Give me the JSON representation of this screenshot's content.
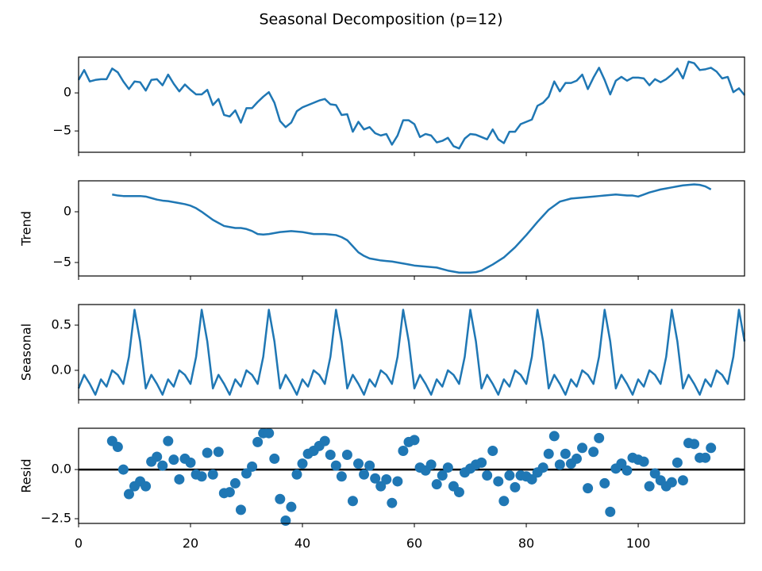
{
  "chart_data": [
    {
      "type": "line",
      "title": "Seasonal Decomposition (p=12)",
      "color": "#1f77b4",
      "xtick_labels": false,
      "xlim": [
        0,
        119
      ],
      "ylim": [
        -7.8,
        4.7
      ],
      "xticks": [
        0,
        20,
        40,
        60,
        80,
        100
      ],
      "yticks": [
        {
          "value": -5,
          "label": "−5"
        },
        0
      ],
      "x": [
        0,
        1,
        2,
        3,
        4,
        5,
        6,
        7,
        8,
        9,
        10,
        11,
        12,
        13,
        14,
        15,
        16,
        17,
        18,
        19,
        20,
        21,
        22,
        23,
        24,
        25,
        26,
        27,
        28,
        29,
        30,
        31,
        32,
        33,
        34,
        35,
        36,
        37,
        38,
        39,
        40,
        41,
        42,
        43,
        44,
        45,
        46,
        47,
        48,
        49,
        50,
        51,
        52,
        53,
        54,
        55,
        56,
        57,
        58,
        59,
        60,
        61,
        62,
        63,
        64,
        65,
        66,
        67,
        68,
        69,
        70,
        71,
        72,
        73,
        74,
        75,
        76,
        77,
        78,
        79,
        80,
        81,
        82,
        83,
        84,
        85,
        86,
        87,
        88,
        89,
        90,
        91,
        92,
        93,
        94,
        95,
        96,
        97,
        98,
        99,
        100,
        101,
        102,
        103,
        104,
        105,
        106,
        107,
        108,
        109,
        110,
        111,
        112,
        113,
        114,
        115,
        116,
        117,
        118,
        119
      ],
      "values": [
        1.7,
        3.0,
        1.5,
        1.7,
        1.8,
        1.8,
        3.2,
        2.7,
        1.5,
        0.5,
        1.5,
        1.4,
        0.3,
        1.7,
        1.8,
        1.0,
        2.4,
        1.2,
        0.2,
        1.1,
        0.4,
        -0.2,
        -0.2,
        0.4,
        -1.6,
        -0.8,
        -2.9,
        -3.1,
        -2.3,
        -3.9,
        -2.0,
        -2.0,
        -1.2,
        -0.5,
        0.1,
        -1.3,
        -3.7,
        -4.5,
        -3.9,
        -2.4,
        -1.9,
        -1.6,
        -1.3,
        -1.0,
        -0.8,
        -1.5,
        -1.6,
        -2.9,
        -2.8,
        -5.1,
        -3.8,
        -4.8,
        -4.5,
        -5.3,
        -5.6,
        -5.4,
        -6.8,
        -5.6,
        -3.6,
        -3.6,
        -4.1,
        -5.8,
        -5.4,
        -5.6,
        -6.5,
        -6.3,
        -5.9,
        -7.0,
        -7.3,
        -6.0,
        -5.4,
        -5.5,
        -5.8,
        -6.1,
        -4.8,
        -6.1,
        -6.6,
        -5.1,
        -5.1,
        -4.1,
        -3.8,
        -3.5,
        -1.7,
        -1.3,
        -0.5,
        1.5,
        0.2,
        1.3,
        1.3,
        1.6,
        2.4,
        0.5,
        2.0,
        3.3,
        1.7,
        -0.2,
        1.6,
        2.1,
        1.6,
        2.0,
        2.0,
        1.9,
        1.0,
        1.8,
        1.4,
        1.8,
        2.4,
        3.2,
        1.9,
        4.1,
        3.9,
        3.0,
        3.1,
        3.3,
        2.8,
        1.9,
        2.1,
        0.1,
        0.6,
        -0.3
      ]
    },
    {
      "type": "line",
      "ylabel": "Trend",
      "color": "#1f77b4",
      "xtick_labels": false,
      "xlim": [
        0,
        119
      ],
      "ylim": [
        -6.33,
        3.05
      ],
      "xticks": [
        0,
        20,
        40,
        60,
        80,
        100
      ],
      "yticks": [
        {
          "value": -5,
          "label": "−5"
        },
        0
      ],
      "x": [
        0,
        1,
        2,
        3,
        4,
        5,
        6,
        7,
        8,
        9,
        10,
        11,
        12,
        13,
        14,
        15,
        16,
        17,
        18,
        19,
        20,
        21,
        22,
        23,
        24,
        25,
        26,
        27,
        28,
        29,
        30,
        31,
        32,
        33,
        34,
        35,
        36,
        37,
        38,
        39,
        40,
        41,
        42,
        43,
        44,
        45,
        46,
        47,
        48,
        49,
        50,
        51,
        52,
        53,
        54,
        55,
        56,
        57,
        58,
        59,
        60,
        61,
        62,
        63,
        64,
        65,
        66,
        67,
        68,
        69,
        70,
        71,
        72,
        73,
        74,
        75,
        76,
        77,
        78,
        79,
        80,
        81,
        82,
        83,
        84,
        85,
        86,
        87,
        88,
        89,
        90,
        91,
        92,
        93,
        94,
        95,
        96,
        97,
        98,
        99,
        100,
        101,
        102,
        103,
        104,
        105,
        106,
        107,
        108,
        109,
        110,
        111,
        112,
        113,
        114,
        115,
        116,
        117,
        118,
        119
      ],
      "values": [
        null,
        null,
        null,
        null,
        null,
        null,
        1.7,
        1.6,
        1.55,
        1.55,
        1.55,
        1.55,
        1.5,
        1.35,
        1.2,
        1.1,
        1.05,
        0.95,
        0.85,
        0.75,
        0.6,
        0.35,
        0.0,
        -0.4,
        -0.8,
        -1.1,
        -1.4,
        -1.5,
        -1.6,
        -1.6,
        -1.7,
        -1.9,
        -2.2,
        -2.25,
        -2.2,
        -2.1,
        -2.0,
        -1.95,
        -1.9,
        -1.95,
        -2.0,
        -2.1,
        -2.2,
        -2.2,
        -2.2,
        -2.25,
        -2.3,
        -2.5,
        -2.8,
        -3.4,
        -4.0,
        -4.35,
        -4.6,
        -4.7,
        -4.8,
        -4.85,
        -4.9,
        -5.0,
        -5.1,
        -5.2,
        -5.3,
        -5.35,
        -5.4,
        -5.45,
        -5.5,
        -5.65,
        -5.8,
        -5.9,
        -6.0,
        -6.0,
        -6.0,
        -5.95,
        -5.8,
        -5.5,
        -5.2,
        -4.85,
        -4.5,
        -4.0,
        -3.5,
        -2.9,
        -2.3,
        -1.65,
        -1.0,
        -0.4,
        0.2,
        0.6,
        1.0,
        1.15,
        1.3,
        1.35,
        1.4,
        1.45,
        1.5,
        1.55,
        1.6,
        1.65,
        1.7,
        1.65,
        1.6,
        1.6,
        1.5,
        1.7,
        1.9,
        2.05,
        2.2,
        2.3,
        2.4,
        2.5,
        2.6,
        2.65,
        2.7,
        2.65,
        2.5,
        2.2,
        null,
        null,
        null,
        null,
        null,
        null
      ]
    },
    {
      "type": "line",
      "ylabel": "Seasonal",
      "color": "#1f77b4",
      "xtick_labels": false,
      "xlim": [
        0,
        119
      ],
      "ylim": [
        -0.325,
        0.728
      ],
      "xticks": [
        0,
        20,
        40,
        60,
        80,
        100
      ],
      "yticks": [
        {
          "value": 0,
          "label": "0.0"
        },
        0.5
      ],
      "x": [
        0,
        1,
        2,
        3,
        4,
        5,
        6,
        7,
        8,
        9,
        10,
        11,
        12,
        13,
        14,
        15,
        16,
        17,
        18,
        19,
        20,
        21,
        22,
        23,
        24,
        25,
        26,
        27,
        28,
        29,
        30,
        31,
        32,
        33,
        34,
        35,
        36,
        37,
        38,
        39,
        40,
        41,
        42,
        43,
        44,
        45,
        46,
        47,
        48,
        49,
        50,
        51,
        52,
        53,
        54,
        55,
        56,
        57,
        58,
        59,
        60,
        61,
        62,
        63,
        64,
        65,
        66,
        67,
        68,
        69,
        70,
        71,
        72,
        73,
        74,
        75,
        76,
        77,
        78,
        79,
        80,
        81,
        82,
        83,
        84,
        85,
        86,
        87,
        88,
        89,
        90,
        91,
        92,
        93,
        94,
        95,
        96,
        97,
        98,
        99,
        100,
        101,
        102,
        103,
        104,
        105,
        106,
        107,
        108,
        109,
        110,
        111,
        112,
        113,
        114,
        115,
        116,
        117,
        118,
        119
      ],
      "values": [
        -0.2,
        -0.05,
        -0.15,
        -0.27,
        -0.1,
        -0.18,
        0.0,
        -0.05,
        -0.15,
        0.15,
        0.67,
        0.32,
        -0.2,
        -0.05,
        -0.15,
        -0.27,
        -0.1,
        -0.18,
        0.0,
        -0.05,
        -0.15,
        0.15,
        0.67,
        0.32,
        -0.2,
        -0.05,
        -0.15,
        -0.27,
        -0.1,
        -0.18,
        0.0,
        -0.05,
        -0.15,
        0.15,
        0.67,
        0.32,
        -0.2,
        -0.05,
        -0.15,
        -0.27,
        -0.1,
        -0.18,
        0.0,
        -0.05,
        -0.15,
        0.15,
        0.67,
        0.32,
        -0.2,
        -0.05,
        -0.15,
        -0.27,
        -0.1,
        -0.18,
        0.0,
        -0.05,
        -0.15,
        0.15,
        0.67,
        0.32,
        -0.2,
        -0.05,
        -0.15,
        -0.27,
        -0.1,
        -0.18,
        0.0,
        -0.05,
        -0.15,
        0.15,
        0.67,
        0.32,
        -0.2,
        -0.05,
        -0.15,
        -0.27,
        -0.1,
        -0.18,
        0.0,
        -0.05,
        -0.15,
        0.15,
        0.67,
        0.32,
        -0.2,
        -0.05,
        -0.15,
        -0.27,
        -0.1,
        -0.18,
        0.0,
        -0.05,
        -0.15,
        0.15,
        0.67,
        0.32,
        -0.2,
        -0.05,
        -0.15,
        -0.27,
        -0.1,
        -0.18,
        0.0,
        -0.05,
        -0.15,
        0.15,
        0.67,
        0.32,
        -0.2,
        -0.05,
        -0.15,
        -0.27,
        -0.1,
        -0.18,
        0.0,
        -0.05,
        -0.15,
        0.15,
        0.67,
        0.32
      ]
    },
    {
      "type": "scatter",
      "ylabel": "Resid",
      "color": "#1f77b4",
      "xtick_labels": true,
      "hline": 0,
      "xlim": [
        0,
        119
      ],
      "ylim": [
        -2.74,
        2.1
      ],
      "xticks": [
        0,
        20,
        40,
        60,
        80,
        100
      ],
      "yticks": [
        {
          "value": -2.5,
          "label": "−2.5"
        },
        {
          "value": 0,
          "label": "0.0"
        }
      ],
      "x": [
        0,
        1,
        2,
        3,
        4,
        5,
        6,
        7,
        8,
        9,
        10,
        11,
        12,
        13,
        14,
        15,
        16,
        17,
        18,
        19,
        20,
        21,
        22,
        23,
        24,
        25,
        26,
        27,
        28,
        29,
        30,
        31,
        32,
        33,
        34,
        35,
        36,
        37,
        38,
        39,
        40,
        41,
        42,
        43,
        44,
        45,
        46,
        47,
        48,
        49,
        50,
        51,
        52,
        53,
        54,
        55,
        56,
        57,
        58,
        59,
        60,
        61,
        62,
        63,
        64,
        65,
        66,
        67,
        68,
        69,
        70,
        71,
        72,
        73,
        74,
        75,
        76,
        77,
        78,
        79,
        80,
        81,
        82,
        83,
        84,
        85,
        86,
        87,
        88,
        89,
        90,
        91,
        92,
        93,
        94,
        95,
        96,
        97,
        98,
        99,
        100,
        101,
        102,
        103,
        104,
        105,
        106,
        107,
        108,
        109,
        110,
        111,
        112,
        113,
        114,
        115,
        116,
        117,
        118,
        119
      ],
      "values": [
        null,
        null,
        null,
        null,
        null,
        null,
        1.45,
        1.15,
        0.0,
        -1.25,
        -0.85,
        -0.6,
        -0.85,
        0.4,
        0.65,
        0.2,
        1.45,
        0.5,
        -0.5,
        0.55,
        0.35,
        -0.25,
        -0.35,
        0.85,
        -0.25,
        0.9,
        -1.2,
        -1.15,
        -0.7,
        -2.05,
        -0.2,
        0.15,
        1.4,
        1.85,
        1.85,
        0.55,
        -1.5,
        -2.6,
        -1.9,
        -0.25,
        0.3,
        0.8,
        0.95,
        1.2,
        1.45,
        0.75,
        0.2,
        -0.35,
        0.75,
        -1.6,
        0.3,
        -0.25,
        0.2,
        -0.45,
        -0.85,
        -0.5,
        -1.7,
        -0.6,
        0.95,
        1.4,
        1.5,
        0.1,
        -0.05,
        0.25,
        -0.75,
        -0.3,
        0.1,
        -0.85,
        -1.15,
        -0.15,
        0.05,
        0.25,
        0.35,
        -0.3,
        0.95,
        -0.6,
        -1.6,
        -0.3,
        -0.9,
        -0.3,
        -0.35,
        -0.5,
        -0.15,
        0.1,
        0.8,
        1.7,
        0.25,
        0.8,
        0.3,
        0.55,
        1.1,
        -0.95,
        0.9,
        1.6,
        -0.7,
        -2.15,
        0.05,
        0.3,
        -0.05,
        0.6,
        0.5,
        0.4,
        -0.85,
        -0.2,
        -0.55,
        -0.85,
        -0.65,
        0.35,
        -0.55,
        1.35,
        1.3,
        0.6,
        0.6,
        1.1,
        null,
        null,
        null,
        null,
        null,
        null
      ]
    }
  ]
}
